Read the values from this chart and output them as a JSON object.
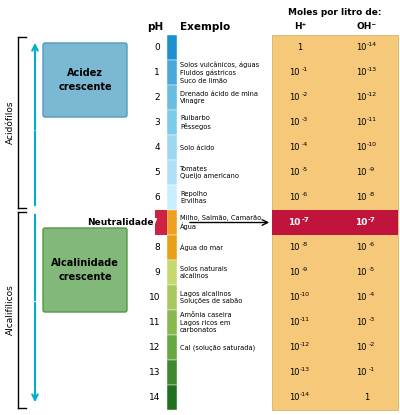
{
  "title_col1": "pH",
  "title_col2": "Exemplo",
  "title_col3": "Moles por litro de:",
  "subtitle_h": "H⁺",
  "subtitle_oh": "OH⁻",
  "bg_color": "#f5c87a",
  "neutral_row_color": "#c0143c",
  "acid_box_color": "#7bb8d4",
  "alkaline_box_color": "#82b87a",
  "arrow_color": "#00b0c8",
  "orange_bar_color": "#f0a020",
  "neutral_ph_box_color": "#cc2244",
  "ph_labels": [
    0,
    1,
    2,
    3,
    4,
    5,
    6,
    7,
    8,
    9,
    10,
    11,
    12,
    13,
    14
  ],
  "examples": [
    "",
    "Solos vulcânicos, águas\nFluidos gástricos\nSuco de limão",
    "Drenado ácido de mina\nVinagre",
    "Ruibarbo\nPêssegos",
    "Solo ácido",
    "Tomates\nQueijo americano",
    "Repolho\nErvilhas",
    "Milho, Salmão, Camarão\nÁgua",
    "Água do mar",
    "Solos naturais\nalcalinos",
    "Lagos alcalinos\nSoluções de sabão",
    "Amônia caseira\nLagos ricos em\ncarbonatos",
    "Cal (solução saturada)",
    "",
    ""
  ],
  "h_exponents": [
    0,
    -1,
    -2,
    -3,
    -4,
    -5,
    -6,
    -7,
    -8,
    -9,
    -10,
    -11,
    -12,
    -13,
    -14
  ],
  "oh_exponents": [
    -14,
    -13,
    -12,
    -11,
    -10,
    -9,
    -8,
    -7,
    -6,
    -5,
    -4,
    -3,
    -2,
    -1,
    0
  ],
  "acid_label": "Acidófilos",
  "alkaline_label": "Alcalifílicos",
  "acid_box_label": "Acidez\ncrescente",
  "alkaline_box_label": "Alcalinidade\ncrescente",
  "neutral_label": "Neutralidade"
}
